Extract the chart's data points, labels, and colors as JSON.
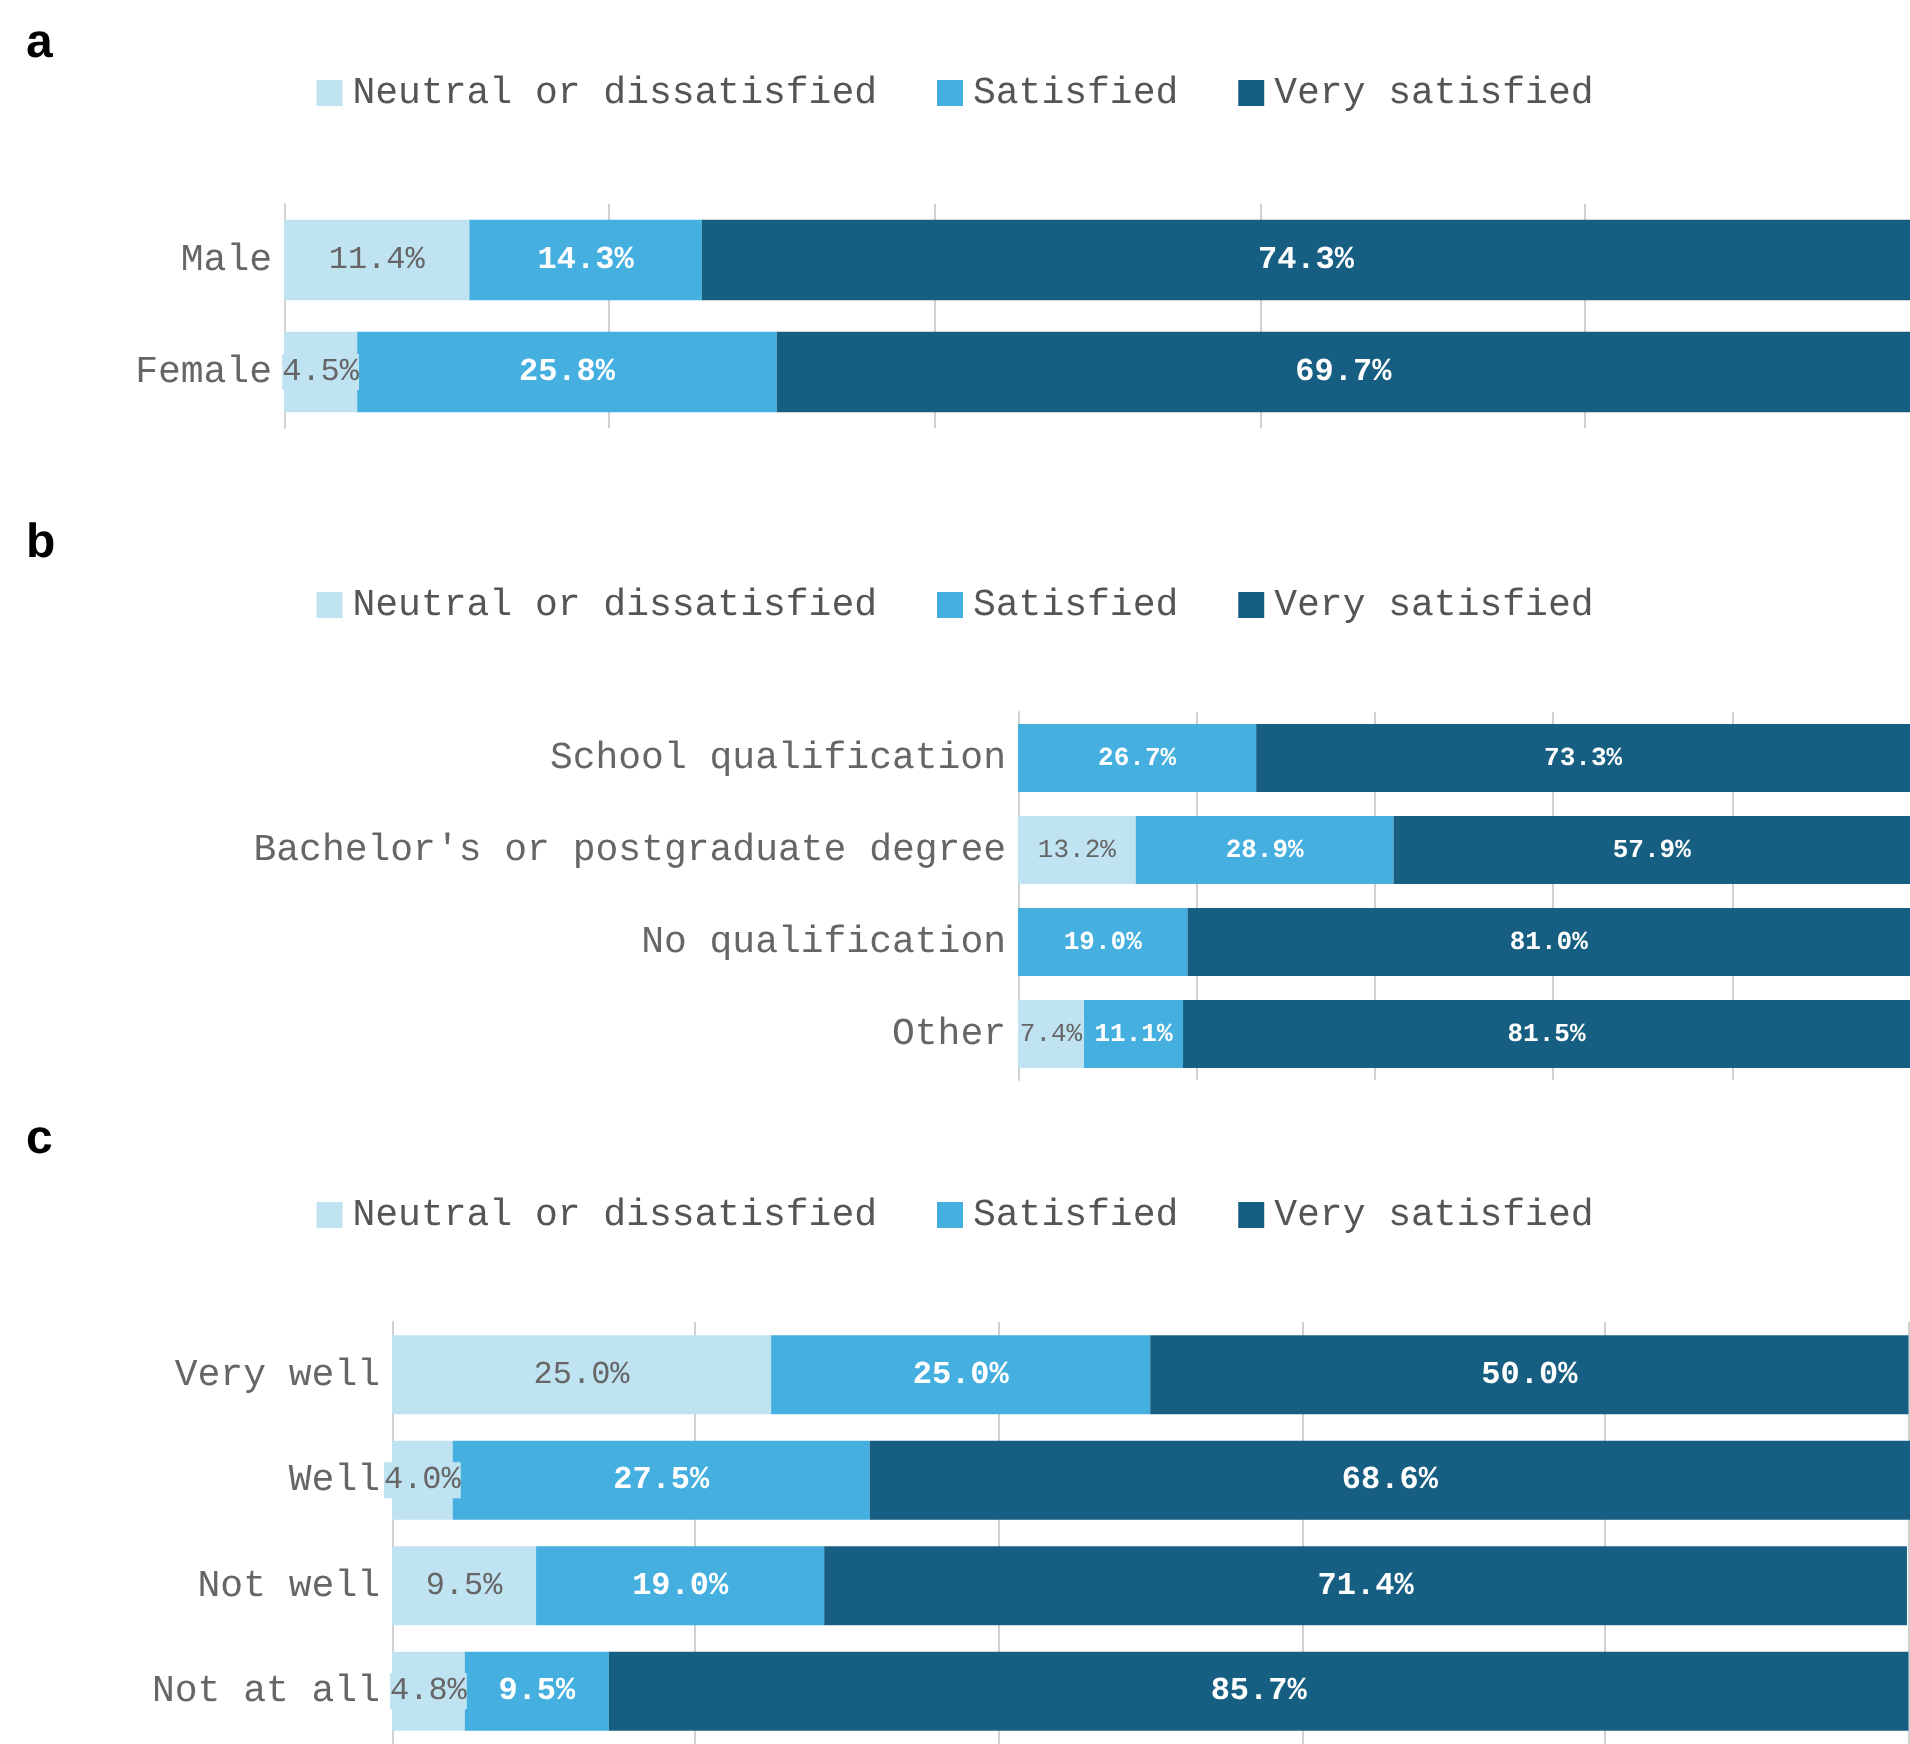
{
  "chart_data": [
    {
      "type": "bar",
      "title": "a",
      "orientation": "horizontal",
      "stacked": true,
      "categories": [
        "Male",
        "Female"
      ],
      "legend": "top",
      "grid": "x",
      "tick_labels": "y",
      "series": [
        {
          "name": "Neutral or dissatisfied",
          "color": "#c0e3f2",
          "values": [
            11.4,
            4.5
          ],
          "value_labels": [
            "11.4%",
            "4.5%"
          ]
        },
        {
          "name": "Satisfied",
          "color": "#45b0e0",
          "values": [
            14.3,
            25.8
          ],
          "value_labels": [
            "14.3%",
            "25.8%"
          ]
        },
        {
          "name": "Very satisfied",
          "color": "#175f82",
          "values": [
            74.3,
            69.7
          ],
          "value_labels": [
            "74.3%",
            "69.7%"
          ]
        }
      ]
    },
    {
      "type": "bar",
      "title": "b",
      "orientation": "horizontal",
      "stacked": true,
      "categories": [
        "School qualification",
        "Bachelor's or postgraduate degree",
        "No qualification",
        "Other"
      ],
      "legend": "top",
      "grid": "x",
      "tick_labels": "y",
      "series": [
        {
          "name": "Neutral or dissatisfied",
          "color": "#c0e3f2",
          "values": [
            0,
            13.2,
            0,
            7.4
          ],
          "value_labels": [
            null,
            "13.2%",
            null,
            "7.4%"
          ]
        },
        {
          "name": "Satisfied",
          "color": "#45b0e0",
          "values": [
            26.7,
            28.9,
            19.0,
            11.1
          ],
          "value_labels": [
            "26.7%",
            "28.9%",
            "19.0%",
            "11.1%"
          ]
        },
        {
          "name": "Very satisfied",
          "color": "#175f82",
          "values": [
            73.3,
            57.9,
            81.0,
            81.5
          ],
          "value_labels": [
            "73.3%",
            "57.9%",
            "81.0%",
            "81.5%"
          ]
        }
      ]
    },
    {
      "type": "bar",
      "title": "c",
      "orientation": "horizontal",
      "stacked": true,
      "categories": [
        "Very well",
        "Well",
        "Not well",
        "Not at all"
      ],
      "legend": "top",
      "grid": "x",
      "tick_labels": "y",
      "series": [
        {
          "name": "Neutral or dissatisfied",
          "color": "#c0e3f2",
          "values": [
            25.0,
            4.0,
            9.5,
            4.8
          ],
          "value_labels": [
            "25.0%",
            "4.0%",
            "9.5%",
            "4.8%"
          ]
        },
        {
          "name": "Satisfied",
          "color": "#45b0e0",
          "values": [
            25.0,
            27.5,
            19.0,
            9.5
          ],
          "value_labels": [
            "25.0%",
            "27.5%",
            "19.0%",
            "9.5%"
          ]
        },
        {
          "name": "Very satisfied",
          "color": "#175f82",
          "values": [
            50.0,
            68.6,
            71.4,
            85.7
          ],
          "value_labels": [
            "50.0%",
            "68.6%",
            "71.4%",
            "85.7%"
          ]
        }
      ]
    }
  ]
}
